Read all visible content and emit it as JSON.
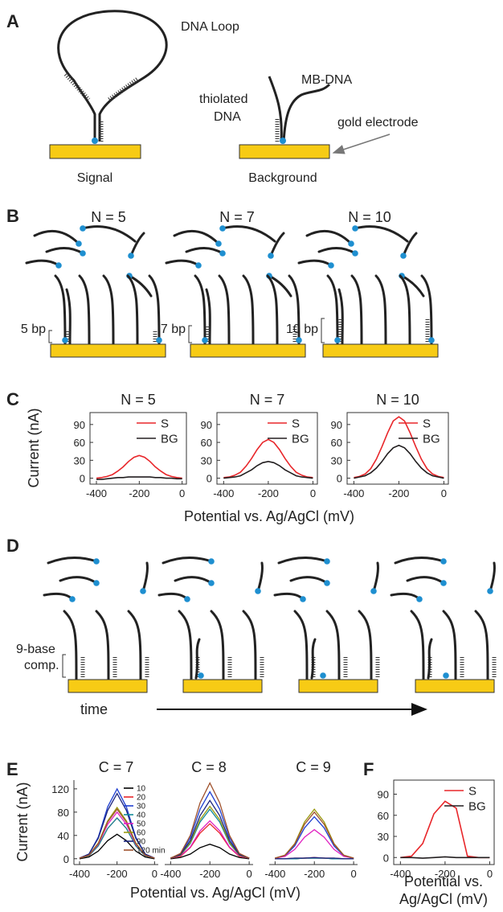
{
  "panel_a": {
    "label": "A",
    "loop": "DNA Loop",
    "thiolated_dna": [
      "thiolated",
      "DNA"
    ],
    "mb_dna": "MB-DNA",
    "electrode": "gold electrode",
    "signal": "Signal",
    "background": "Background"
  },
  "panel_b": {
    "label": "B",
    "groups": [
      {
        "title": "N = 5",
        "bp": "5 bp"
      },
      {
        "title": "N = 7",
        "bp": "7 bp"
      },
      {
        "title": "N = 10",
        "bp": "10 bp"
      }
    ]
  },
  "panel_d": {
    "label": "D",
    "comp": [
      "9-base",
      "comp."
    ],
    "time": "time"
  },
  "chart_data": [
    {
      "type": "line",
      "panel": "C",
      "title": "N = 5",
      "ylabel": "Current (nA)",
      "xlabel": "Potential vs. Ag/AgCl (mV)",
      "x": [
        -400,
        -375,
        -350,
        -325,
        -300,
        -275,
        -250,
        -225,
        -200,
        -175,
        -150,
        -125,
        -100,
        -75,
        -50,
        -25,
        0
      ],
      "xlim": [
        -430,
        20
      ],
      "xticks": [
        -400,
        -200,
        0
      ],
      "ylim": [
        -10,
        110
      ],
      "yticks": [
        0,
        30,
        60,
        90
      ],
      "legend": "upper right",
      "series": [
        {
          "name": "S",
          "color": "#e8262a",
          "values": [
            0,
            1,
            3,
            6,
            12,
            19,
            28,
            35,
            38,
            35,
            28,
            19,
            12,
            6,
            3,
            1,
            0
          ]
        },
        {
          "name": "BG",
          "color": "#231f20",
          "values": [
            -2,
            -2,
            -1,
            0,
            1,
            1,
            2,
            2,
            2,
            2,
            2,
            1,
            1,
            0,
            0,
            -1,
            -1
          ]
        }
      ]
    },
    {
      "type": "line",
      "title": "N = 7",
      "x": [
        -400,
        -375,
        -350,
        -325,
        -300,
        -275,
        -250,
        -225,
        -200,
        -175,
        -150,
        -125,
        -100,
        -75,
        -50,
        -25,
        0
      ],
      "xlim": [
        -430,
        20
      ],
      "xticks": [
        -400,
        -200,
        0
      ],
      "ylim": [
        -10,
        110
      ],
      "yticks": [
        0,
        30,
        60,
        90
      ],
      "legend": "upper right",
      "series": [
        {
          "name": "S",
          "color": "#e8262a",
          "values": [
            1,
            2,
            5,
            10,
            20,
            33,
            48,
            60,
            65,
            60,
            48,
            33,
            20,
            10,
            5,
            2,
            1
          ]
        },
        {
          "name": "BG",
          "color": "#231f20",
          "values": [
            0,
            1,
            2,
            4,
            9,
            14,
            21,
            26,
            28,
            26,
            21,
            14,
            9,
            4,
            2,
            1,
            0
          ]
        }
      ]
    },
    {
      "type": "line",
      "title": "N = 10",
      "x": [
        -400,
        -375,
        -350,
        -325,
        -300,
        -275,
        -250,
        -225,
        -200,
        -175,
        -150,
        -125,
        -100,
        -75,
        -50,
        -25,
        0
      ],
      "xlim": [
        -430,
        20
      ],
      "xticks": [
        -400,
        -200,
        0
      ],
      "ylim": [
        -10,
        110
      ],
      "yticks": [
        0,
        30,
        60,
        90
      ],
      "legend": "upper right",
      "series": [
        {
          "name": "S",
          "color": "#e8262a",
          "values": [
            1,
            3,
            7,
            16,
            32,
            53,
            76,
            96,
            103,
            96,
            76,
            53,
            32,
            16,
            7,
            3,
            1
          ]
        },
        {
          "name": "BG",
          "color": "#231f20",
          "values": [
            0,
            2,
            4,
            9,
            17,
            28,
            41,
            51,
            55,
            51,
            41,
            28,
            17,
            9,
            4,
            2,
            0
          ]
        }
      ]
    },
    {
      "type": "line",
      "panel": "E",
      "title": "C = 7",
      "ylabel": "Current (nA)",
      "xlabel": "Potential vs. Ag/AgCl (mV)",
      "x": [
        -400,
        -350,
        -300,
        -250,
        -200,
        -150,
        -100,
        -50,
        0
      ],
      "xlim": [
        -430,
        20
      ],
      "xticks": [
        -400,
        -200,
        0
      ],
      "ylim": [
        -10,
        135
      ],
      "yticks": [
        0,
        40,
        80,
        120
      ],
      "legend": "upper right",
      "series": [
        {
          "name": "10",
          "color": "#000000",
          "values": [
            0,
            3,
            13,
            31,
            42,
            31,
            13,
            3,
            0
          ]
        },
        {
          "name": "20",
          "color": "#e8262a",
          "values": [
            1,
            5,
            22,
            52,
            70,
            52,
            22,
            5,
            1
          ]
        },
        {
          "name": "30",
          "color": "#2040d0",
          "values": [
            1,
            8,
            37,
            89,
            120,
            89,
            37,
            8,
            1
          ]
        },
        {
          "name": "40",
          "color": "#138a9a",
          "values": [
            1,
            5,
            22,
            52,
            70,
            52,
            22,
            5,
            1
          ]
        },
        {
          "name": "50",
          "color": "#e020c0",
          "values": [
            1,
            6,
            25,
            59,
            80,
            59,
            25,
            6,
            1
          ]
        },
        {
          "name": "60",
          "color": "#9a9a10",
          "values": [
            1,
            6,
            27,
            65,
            88,
            65,
            27,
            6,
            1
          ]
        },
        {
          "name": "90",
          "color": "#1a237e",
          "values": [
            1,
            8,
            35,
            83,
            112,
            83,
            35,
            8,
            1
          ]
        },
        {
          "name": "120 min",
          "color": "#a0522d",
          "values": [
            1,
            6,
            26,
            63,
            85,
            63,
            26,
            6,
            1
          ]
        }
      ]
    },
    {
      "type": "line",
      "title": "C = 8",
      "x": [
        -400,
        -350,
        -300,
        -250,
        -200,
        -150,
        -100,
        -50,
        0
      ],
      "xlim": [
        -430,
        20
      ],
      "xticks": [
        -400,
        -200,
        0
      ],
      "ylim": [
        -10,
        135
      ],
      "series": [
        {
          "color": "#000000",
          "values": [
            0,
            2,
            8,
            19,
            25,
            19,
            8,
            2,
            0
          ]
        },
        {
          "color": "#e8262a",
          "values": [
            1,
            4,
            19,
            44,
            60,
            44,
            19,
            4,
            1
          ]
        },
        {
          "color": "#2040d0",
          "values": [
            1,
            8,
            36,
            85,
            115,
            85,
            36,
            8,
            1
          ]
        },
        {
          "color": "#138a9a",
          "values": [
            1,
            6,
            26,
            63,
            85,
            63,
            26,
            6,
            1
          ]
        },
        {
          "color": "#e020c0",
          "values": [
            1,
            5,
            20,
            48,
            65,
            48,
            20,
            5,
            1
          ]
        },
        {
          "color": "#9a9a10",
          "values": [
            1,
            6,
            28,
            67,
            90,
            67,
            28,
            6,
            1
          ]
        },
        {
          "color": "#1a237e",
          "values": [
            1,
            7,
            31,
            74,
            100,
            74,
            31,
            7,
            1
          ]
        },
        {
          "color": "#a0522d",
          "values": [
            1,
            9,
            40,
            96,
            130,
            96,
            40,
            9,
            1
          ]
        }
      ]
    },
    {
      "type": "line",
      "title": "C = 9",
      "x": [
        -400,
        -350,
        -300,
        -250,
        -200,
        -150,
        -100,
        -50,
        0
      ],
      "xlim": [
        -430,
        20
      ],
      "xticks": [
        -400,
        -200,
        0
      ],
      "ylim": [
        -10,
        135
      ],
      "series": [
        {
          "color": "#000000",
          "values": [
            0,
            0,
            0,
            1,
            1,
            1,
            0,
            0,
            0
          ]
        },
        {
          "color": "#e8262a",
          "values": [
            0,
            0,
            1,
            1,
            2,
            1,
            1,
            0,
            0
          ]
        },
        {
          "color": "#2040d0",
          "values": [
            1,
            5,
            22,
            53,
            72,
            53,
            22,
            5,
            1
          ]
        },
        {
          "color": "#138a9a",
          "values": [
            0,
            0,
            0,
            1,
            1,
            1,
            0,
            0,
            0
          ]
        },
        {
          "color": "#e020c0",
          "values": [
            1,
            4,
            16,
            37,
            50,
            37,
            16,
            4,
            1
          ]
        },
        {
          "color": "#9a9a10",
          "values": [
            1,
            6,
            26,
            63,
            85,
            63,
            26,
            6,
            1
          ]
        },
        {
          "color": "#1a237e",
          "values": [
            0,
            0,
            1,
            1,
            2,
            1,
            1,
            0,
            0
          ]
        },
        {
          "color": "#a0522d",
          "values": [
            1,
            6,
            25,
            59,
            80,
            59,
            25,
            6,
            1
          ]
        }
      ]
    },
    {
      "type": "line",
      "panel": "F",
      "xlabel": [
        "Potential vs.",
        "Ag/AgCl (mV)"
      ],
      "x": [
        -400,
        -350,
        -300,
        -250,
        -200,
        -150,
        -100,
        -50,
        0
      ],
      "xlim": [
        -430,
        20
      ],
      "xticks": [
        -400,
        -200,
        0
      ],
      "ylim": [
        -10,
        110
      ],
      "yticks": [
        0,
        30,
        60,
        90
      ],
      "legend": "upper right",
      "series": [
        {
          "name": "S",
          "color": "#e8262a",
          "values": [
            0,
            2,
            20,
            62,
            80,
            70,
            2,
            0,
            0
          ]
        },
        {
          "name": "BG",
          "color": "#231f20",
          "values": [
            0,
            0,
            -1,
            0,
            1,
            0,
            0,
            0,
            0
          ]
        }
      ]
    }
  ]
}
